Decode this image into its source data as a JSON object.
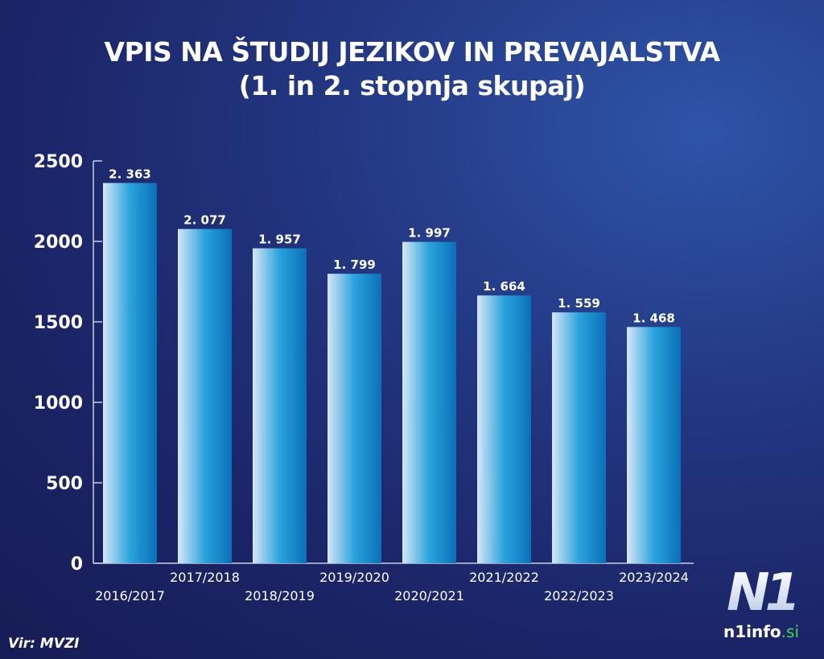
{
  "chart_data": {
    "type": "bar",
    "title": "VPIS NA ŠTUDIJ JEZIKOV IN PREVAJALSTVA",
    "subtitle": "(1. in 2. stopnja skupaj)",
    "categories": [
      "2016/2017",
      "2017/2018",
      "2018/2019",
      "2019/2020",
      "2020/2021",
      "2021/2022",
      "2022/2023",
      "2023/2024"
    ],
    "values": [
      2363,
      2077,
      1957,
      1799,
      1997,
      1664,
      1559,
      1468
    ],
    "data_labels": [
      "2. 363",
      "2. 077",
      "1. 957",
      "1. 799",
      "1. 997",
      "1. 664",
      "1. 559",
      "1. 468"
    ],
    "yticks": [
      "0",
      "500",
      "1000",
      "1500",
      "2000",
      "2500"
    ],
    "ylim": [
      0,
      2500
    ],
    "xlabel": "",
    "ylabel": "",
    "grid": false
  },
  "source": "Vir: MVZI",
  "logo": {
    "mark": "N1",
    "site": "n1info",
    "tld": ".si"
  },
  "colors": {
    "bar_light": "#d6e6f7",
    "bar_mid": "#2aa3dc",
    "bar_dark": "#0a6fb8",
    "tld": "#3ddc4a"
  }
}
